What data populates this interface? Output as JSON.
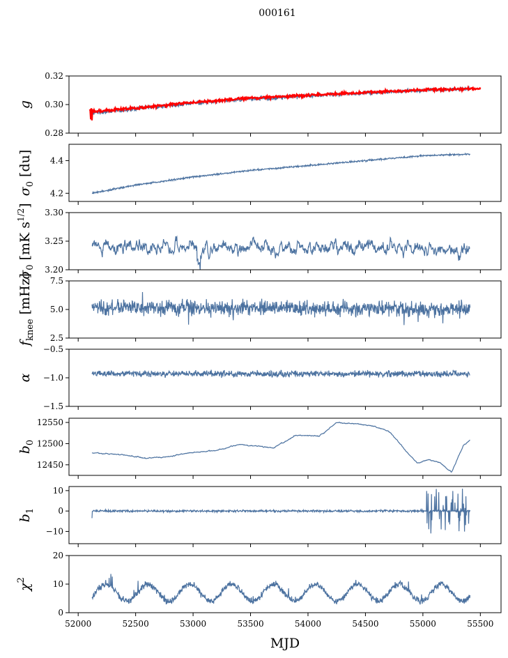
{
  "chart_data": {
    "type": "line",
    "title": "000161",
    "xlabel": "MJD",
    "xlim": [
      51920,
      55680
    ],
    "xticks": [
      52000,
      52500,
      53000,
      53500,
      54000,
      54500,
      55000,
      55500
    ],
    "x_start": 52120,
    "x_end": 55410,
    "series_color": "#4c72a0",
    "fit_color": "#ff0000",
    "panels": [
      {
        "id": "g",
        "ylabel": "g",
        "ylim": [
          0.28,
          0.32
        ],
        "yticks": [
          "0.32",
          "0.30",
          "0.28"
        ],
        "ytick_values": [
          0.32,
          0.3,
          0.28
        ],
        "trend": [
          [
            52120,
            0.294
          ],
          [
            52500,
            0.297
          ],
          [
            53000,
            0.301
          ],
          [
            53500,
            0.304
          ],
          [
            54000,
            0.306
          ],
          [
            54500,
            0.308
          ],
          [
            55000,
            0.31
          ],
          [
            55410,
            0.311
          ]
        ],
        "noise": 0.0012,
        "fit": [
          [
            52100,
            0.295
          ],
          [
            52500,
            0.2975
          ],
          [
            53000,
            0.3015
          ],
          [
            53500,
            0.3045
          ],
          [
            54000,
            0.3065
          ],
          [
            54500,
            0.3085
          ],
          [
            55000,
            0.3102
          ],
          [
            55500,
            0.3112
          ]
        ],
        "fit_noise": 0.0008
      },
      {
        "id": "sigma0",
        "ylabel": "σ0 [du]",
        "ylim": [
          4.15,
          4.5
        ],
        "yticks": [
          "4.4",
          "4.2"
        ],
        "ytick_values": [
          4.4,
          4.2
        ],
        "trend": [
          [
            52120,
            4.2
          ],
          [
            52500,
            4.25
          ],
          [
            53000,
            4.3
          ],
          [
            53500,
            4.34
          ],
          [
            54000,
            4.37
          ],
          [
            54500,
            4.4
          ],
          [
            55000,
            4.43
          ],
          [
            55410,
            4.44
          ]
        ],
        "noise": 0.004
      },
      {
        "id": "sigma_wn",
        "ylabel": "σ [mK s^1/2]",
        "ylim": [
          3.2,
          3.3
        ],
        "yticks": [
          "3.30",
          "3.25",
          "3.20"
        ],
        "ytick_values": [
          3.3,
          3.25,
          3.2
        ],
        "trend": [
          [
            52120,
            3.238
          ],
          [
            55410,
            3.238
          ]
        ],
        "noise": 0.012
      },
      {
        "id": "fknee",
        "ylabel": "f_knee [mHz]",
        "ylim": [
          2.5,
          7.5
        ],
        "yticks": [
          "7.5",
          "5.0",
          "2.5"
        ],
        "ytick_values": [
          7.5,
          5.0,
          2.5
        ],
        "trend": [
          [
            52120,
            5.2
          ],
          [
            55410,
            5.0
          ]
        ],
        "noise": 0.55
      },
      {
        "id": "alpha",
        "ylabel": "α",
        "ylim": [
          -1.5,
          -0.5
        ],
        "yticks": [
          "−0.5",
          "−1.0",
          "−1.5"
        ],
        "ytick_values": [
          -0.5,
          -1.0,
          -1.5
        ],
        "trend": [
          [
            52120,
            -0.93
          ],
          [
            55410,
            -0.93
          ]
        ],
        "noise": 0.045
      },
      {
        "id": "b0",
        "ylabel": "b0",
        "ylim": [
          12425,
          12560
        ],
        "yticks": [
          "12550",
          "12500",
          "12450"
        ],
        "ytick_values": [
          12550,
          12500,
          12450
        ],
        "trend": [
          [
            52120,
            12478
          ],
          [
            52200,
            12477
          ],
          [
            52400,
            12473
          ],
          [
            52600,
            12465
          ],
          [
            52800,
            12470
          ],
          [
            53000,
            12480
          ],
          [
            53200,
            12483
          ],
          [
            53400,
            12498
          ],
          [
            53550,
            12494
          ],
          [
            53700,
            12490
          ],
          [
            53900,
            12520
          ],
          [
            54100,
            12518
          ],
          [
            54250,
            12550
          ],
          [
            54400,
            12547
          ],
          [
            54550,
            12542
          ],
          [
            54700,
            12530
          ],
          [
            54800,
            12500
          ],
          [
            54950,
            12453
          ],
          [
            55050,
            12462
          ],
          [
            55150,
            12455
          ],
          [
            55250,
            12432
          ],
          [
            55350,
            12495
          ],
          [
            55410,
            12508
          ]
        ],
        "noise": 1.2
      },
      {
        "id": "b1",
        "ylabel": "b1",
        "ylim": [
          -16,
          12
        ],
        "yticks": [
          "10",
          "0",
          "−10"
        ],
        "ytick_values": [
          10,
          0,
          -10
        ],
        "trend": [
          [
            52120,
            0.0
          ],
          [
            55410,
            0.0
          ]
        ],
        "noise": 0.45
      },
      {
        "id": "chi2",
        "ylabel": "χ2",
        "ylim": [
          0,
          20
        ],
        "yticks": [
          "20",
          "10",
          "0"
        ],
        "ytick_values": [
          20,
          10,
          0
        ],
        "trend": [
          [
            52120,
            7.0
          ],
          [
            55410,
            7.0
          ]
        ],
        "noise": 0.9,
        "oscillation_period": 365,
        "oscillation_amplitude": 3
      }
    ]
  }
}
